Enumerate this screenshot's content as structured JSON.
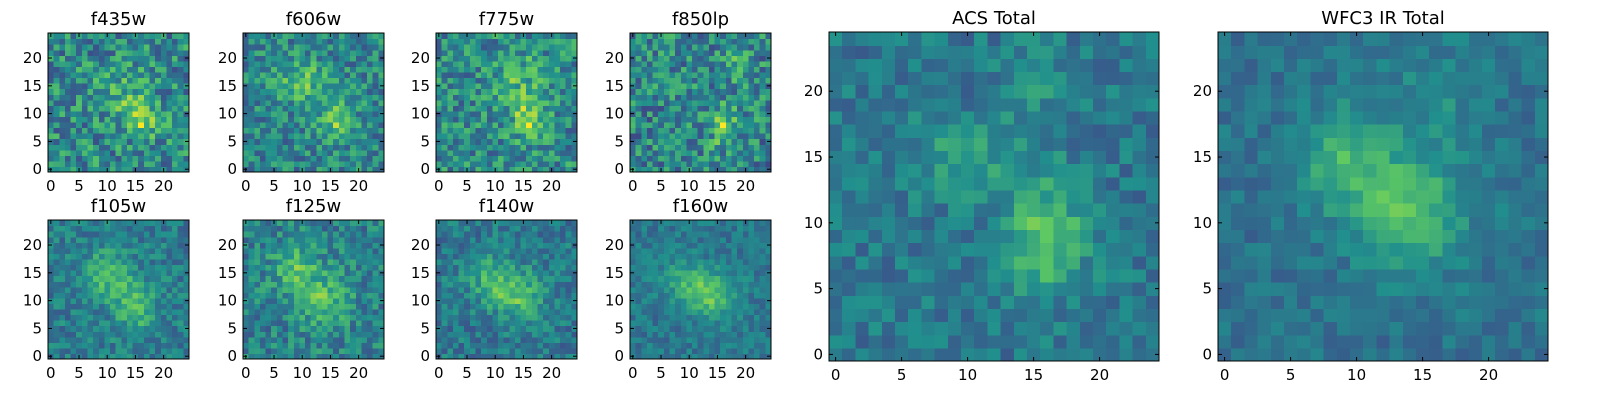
{
  "figure": {
    "colormap_colors": [
      "#440154",
      "#3b528b",
      "#21908d",
      "#5dc863",
      "#fde725"
    ]
  },
  "chart_data": [
    {
      "type": "heatmap",
      "title": "f435w",
      "xlim": [
        0,
        25
      ],
      "ylim": [
        0,
        25
      ],
      "xticks": [
        "0",
        "5",
        "10",
        "15",
        "20"
      ],
      "yticks": [
        "0",
        "5",
        "10",
        "15",
        "20"
      ],
      "grid": false,
      "legend": "none",
      "colormap": "viridis",
      "peaks": [
        {
          "x": 16,
          "y": 9,
          "amp": 0.34,
          "sx": 2.0,
          "sy": 2.2
        },
        {
          "x": 13,
          "y": 14,
          "amp": 0.17,
          "sx": 3.5,
          "sy": 3.0
        }
      ],
      "base": 0.48,
      "noise": 0.24,
      "seed": 11
    },
    {
      "type": "heatmap",
      "title": "f606w",
      "xlim": [
        0,
        25
      ],
      "ylim": [
        0,
        25
      ],
      "xticks": [
        "0",
        "5",
        "10",
        "15",
        "20"
      ],
      "yticks": [
        "0",
        "5",
        "10",
        "15",
        "20"
      ],
      "grid": false,
      "legend": "none",
      "colormap": "viridis",
      "peaks": [
        {
          "x": 16,
          "y": 9,
          "amp": 0.3,
          "sx": 2.2,
          "sy": 2.5
        },
        {
          "x": 10,
          "y": 16,
          "amp": 0.27,
          "sx": 3.0,
          "sy": 2.5
        }
      ],
      "base": 0.46,
      "noise": 0.2,
      "seed": 23
    },
    {
      "type": "heatmap",
      "title": "f775w",
      "xlim": [
        0,
        25
      ],
      "ylim": [
        0,
        25
      ],
      "xticks": [
        "0",
        "5",
        "10",
        "15",
        "20"
      ],
      "yticks": [
        "0",
        "5",
        "10",
        "15",
        "20"
      ],
      "grid": false,
      "legend": "none",
      "colormap": "viridis",
      "peaks": [
        {
          "x": 16,
          "y": 9,
          "amp": 0.36,
          "sx": 1.8,
          "sy": 2.5
        },
        {
          "x": 14,
          "y": 16,
          "amp": 0.18,
          "sx": 3.0,
          "sy": 4.0
        }
      ],
      "base": 0.48,
      "noise": 0.22,
      "seed": 37
    },
    {
      "type": "heatmap",
      "title": "f850lp",
      "xlim": [
        0,
        25
      ],
      "ylim": [
        0,
        25
      ],
      "xticks": [
        "0",
        "5",
        "10",
        "15",
        "20"
      ],
      "yticks": [
        "0",
        "5",
        "10",
        "15",
        "20"
      ],
      "grid": false,
      "legend": "none",
      "colormap": "viridis",
      "peaks": [
        {
          "x": 16,
          "y": 8,
          "amp": 0.34,
          "sx": 1.5,
          "sy": 2.5
        },
        {
          "x": 18,
          "y": 20,
          "amp": 0.12,
          "sx": 2.0,
          "sy": 3.0
        }
      ],
      "base": 0.46,
      "noise": 0.24,
      "seed": 41
    },
    {
      "type": "heatmap",
      "title": "f105w",
      "xlim": [
        0,
        25
      ],
      "ylim": [
        0,
        25
      ],
      "xticks": [
        "0",
        "5",
        "10",
        "15",
        "20"
      ],
      "yticks": [
        "0",
        "5",
        "10",
        "15",
        "20"
      ],
      "grid": false,
      "legend": "none",
      "colormap": "viridis",
      "peaks": [
        {
          "x": 15,
          "y": 9,
          "amp": 0.3,
          "sx": 2.5,
          "sy": 3.0
        },
        {
          "x": 10,
          "y": 15,
          "amp": 0.27,
          "sx": 3.0,
          "sy": 3.0
        }
      ],
      "base": 0.42,
      "noise": 0.14,
      "seed": 53
    },
    {
      "type": "heatmap",
      "title": "f125w",
      "xlim": [
        0,
        25
      ],
      "ylim": [
        0,
        25
      ],
      "xticks": [
        "0",
        "5",
        "10",
        "15",
        "20"
      ],
      "yticks": [
        "0",
        "5",
        "10",
        "15",
        "20"
      ],
      "grid": false,
      "legend": "none",
      "colormap": "viridis",
      "peaks": [
        {
          "x": 14,
          "y": 10,
          "amp": 0.26,
          "sx": 3.0,
          "sy": 3.5
        },
        {
          "x": 9,
          "y": 16,
          "amp": 0.24,
          "sx": 3.0,
          "sy": 3.0
        }
      ],
      "base": 0.44,
      "noise": 0.17,
      "seed": 67
    },
    {
      "type": "heatmap",
      "title": "f140w",
      "xlim": [
        0,
        25
      ],
      "ylim": [
        0,
        25
      ],
      "xticks": [
        "0",
        "5",
        "10",
        "15",
        "20"
      ],
      "yticks": [
        "0",
        "5",
        "10",
        "15",
        "20"
      ],
      "grid": false,
      "legend": "none",
      "colormap": "viridis",
      "peaks": [
        {
          "x": 14,
          "y": 11,
          "amp": 0.31,
          "sx": 3.0,
          "sy": 3.0
        },
        {
          "x": 9,
          "y": 14,
          "amp": 0.22,
          "sx": 3.0,
          "sy": 3.0
        }
      ],
      "base": 0.4,
      "noise": 0.14,
      "seed": 79
    },
    {
      "type": "heatmap",
      "title": "f160w",
      "xlim": [
        0,
        25
      ],
      "ylim": [
        0,
        25
      ],
      "xticks": [
        "0",
        "5",
        "10",
        "15",
        "20"
      ],
      "yticks": [
        "0",
        "5",
        "10",
        "15",
        "20"
      ],
      "grid": false,
      "legend": "none",
      "colormap": "viridis",
      "peaks": [
        {
          "x": 14,
          "y": 11,
          "amp": 0.34,
          "sx": 3.0,
          "sy": 2.8
        },
        {
          "x": 9,
          "y": 14,
          "amp": 0.2,
          "sx": 2.8,
          "sy": 2.5
        }
      ],
      "base": 0.4,
      "noise": 0.11,
      "seed": 83
    },
    {
      "type": "heatmap",
      "title": "ACS Total",
      "xlim": [
        0,
        25
      ],
      "ylim": [
        0,
        25
      ],
      "xticks": [
        "0",
        "5",
        "10",
        "15",
        "20"
      ],
      "yticks": [
        "0",
        "5",
        "10",
        "15",
        "20"
      ],
      "grid": false,
      "legend": "none",
      "colormap": "viridis",
      "peaks": [
        {
          "x": 16,
          "y": 9,
          "amp": 0.36,
          "sx": 2.0,
          "sy": 2.8
        },
        {
          "x": 10,
          "y": 15,
          "amp": 0.18,
          "sx": 3.0,
          "sy": 2.0
        },
        {
          "x": 15,
          "y": 21,
          "amp": 0.12,
          "sx": 1.5,
          "sy": 3.0
        }
      ],
      "base": 0.4,
      "noise": 0.12,
      "seed": 97
    },
    {
      "type": "heatmap",
      "title": "WFC3 IR Total",
      "xlim": [
        0,
        25
      ],
      "ylim": [
        0,
        25
      ],
      "xticks": [
        "0",
        "5",
        "10",
        "15",
        "20"
      ],
      "yticks": [
        "0",
        "5",
        "10",
        "15",
        "20"
      ],
      "grid": false,
      "legend": "none",
      "colormap": "viridis",
      "peaks": [
        {
          "x": 14,
          "y": 11,
          "amp": 0.32,
          "sx": 3.0,
          "sy": 3.0
        },
        {
          "x": 9,
          "y": 15,
          "amp": 0.28,
          "sx": 2.5,
          "sy": 2.5
        },
        {
          "x": 16,
          "y": 20,
          "amp": 0.12,
          "sx": 2.5,
          "sy": 2.5
        }
      ],
      "base": 0.38,
      "noise": 0.09,
      "seed": 101
    }
  ]
}
